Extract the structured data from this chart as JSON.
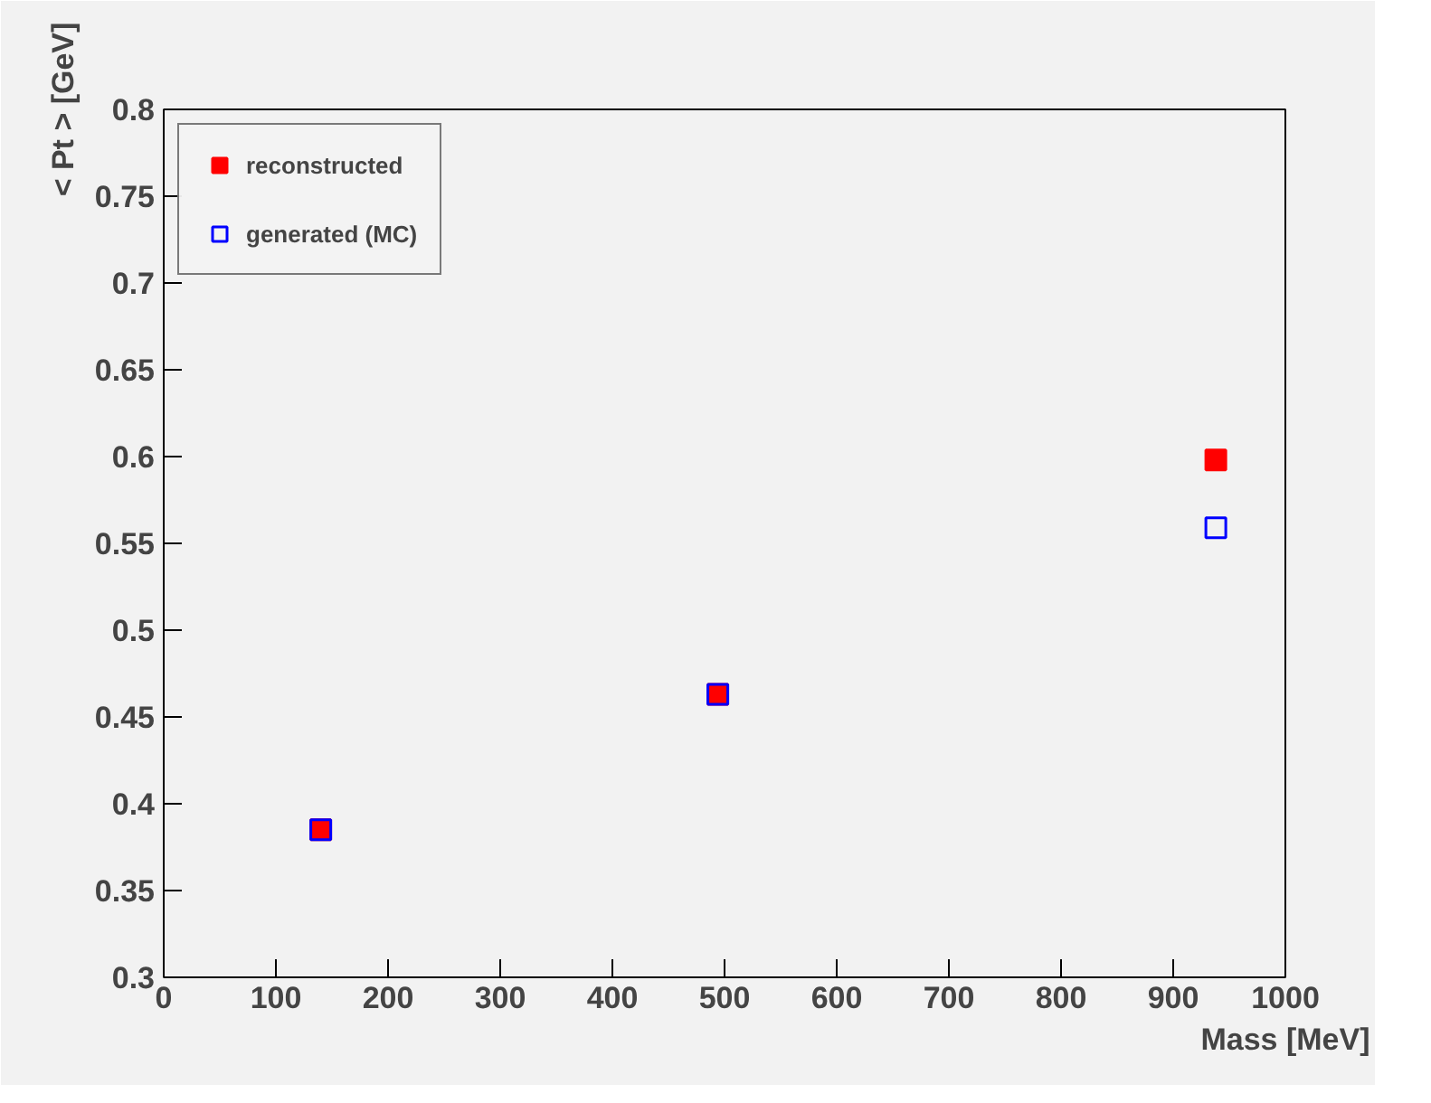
{
  "chart_data": {
    "type": "scatter",
    "xlabel": "Mass [MeV]",
    "ylabel": "< Pt > [GeV]",
    "x": [
      140,
      494,
      938
    ],
    "series": [
      {
        "name": "reconstructed",
        "color": "#ff0000",
        "values": [
          0.385,
          0.463,
          0.598
        ],
        "marker": "square"
      },
      {
        "name": "generated (MC)",
        "color": "#0000ff",
        "values": [
          0.385,
          0.463,
          0.559
        ],
        "marker": "square"
      }
    ],
    "xlim": [
      0,
      1000
    ],
    "xticks": [
      0,
      100,
      200,
      300,
      400,
      500,
      600,
      700,
      800,
      900,
      1000
    ],
    "ylim": [
      0.3,
      0.8
    ],
    "yticks": [
      0.3,
      0.35,
      0.4,
      0.45,
      0.5,
      0.55,
      0.6,
      0.65,
      0.7,
      0.75,
      0.8
    ],
    "grid": false,
    "legend": "top left"
  }
}
